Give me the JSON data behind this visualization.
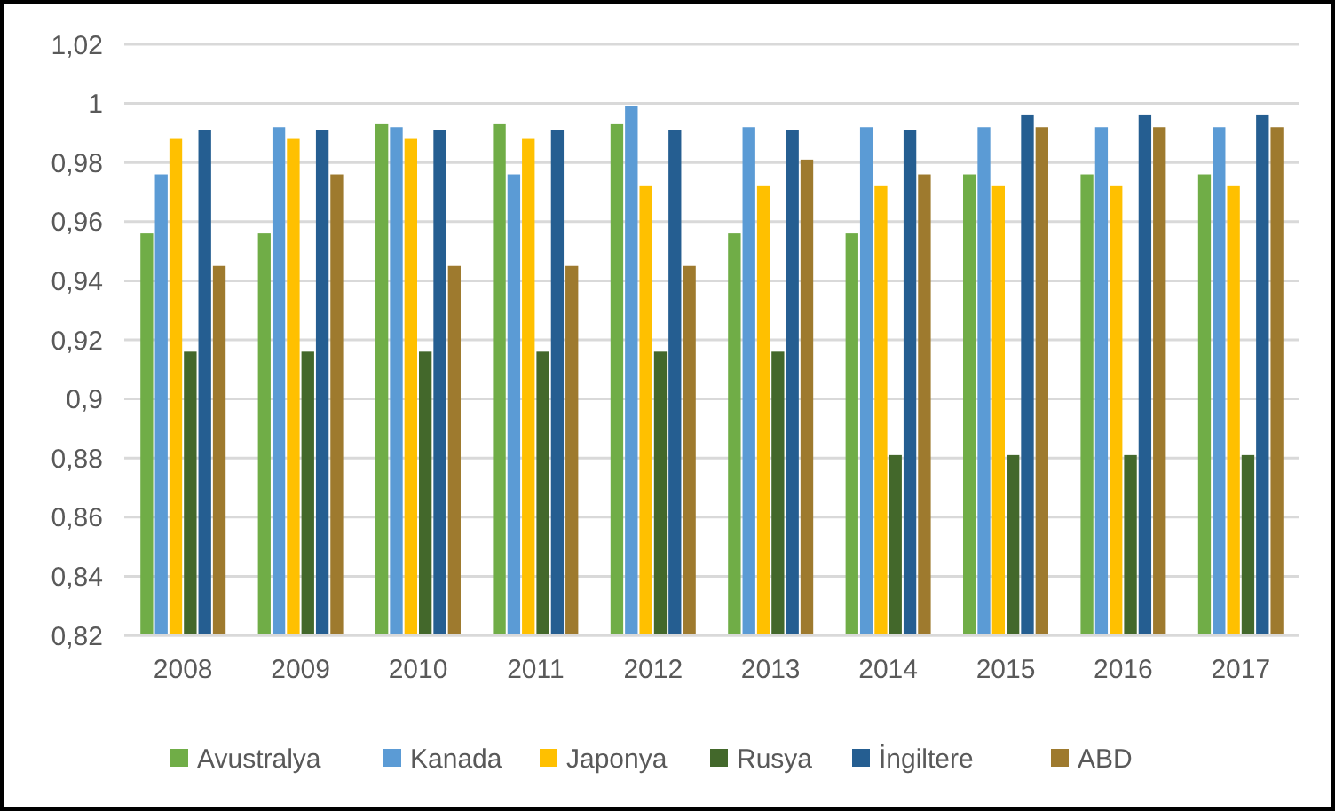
{
  "chart_data": {
    "type": "bar",
    "categories": [
      "2008",
      "2009",
      "2010",
      "2011",
      "2012",
      "2013",
      "2014",
      "2015",
      "2016",
      "2017"
    ],
    "series": [
      {
        "name": "Avustralya",
        "color": "#70ad47",
        "values": [
          0.956,
          0.956,
          0.993,
          0.993,
          0.993,
          0.956,
          0.956,
          0.976,
          0.976,
          0.976
        ]
      },
      {
        "name": "Kanada",
        "color": "#5b9bd5",
        "values": [
          0.976,
          0.992,
          0.992,
          0.976,
          0.999,
          0.992,
          0.992,
          0.992,
          0.992,
          0.992
        ]
      },
      {
        "name": "Japonya",
        "color": "#ffc000",
        "values": [
          0.988,
          0.988,
          0.988,
          0.988,
          0.972,
          0.972,
          0.972,
          0.972,
          0.972,
          0.972
        ]
      },
      {
        "name": "Rusya",
        "color": "#43682b",
        "values": [
          0.916,
          0.916,
          0.916,
          0.916,
          0.916,
          0.916,
          0.881,
          0.881,
          0.881,
          0.881
        ]
      },
      {
        "name": "İngiltere",
        "color": "#255e91",
        "values": [
          0.991,
          0.991,
          0.991,
          0.991,
          0.991,
          0.991,
          0.991,
          0.996,
          0.996,
          0.996
        ]
      },
      {
        "name": "ABD",
        "color": "#9e7a2e",
        "values": [
          0.945,
          0.976,
          0.945,
          0.945,
          0.945,
          0.981,
          0.976,
          0.992,
          0.992,
          0.992
        ]
      }
    ],
    "ylim": [
      0.82,
      1.02
    ],
    "yticks": [
      {
        "value": 0.82,
        "label": "0,82"
      },
      {
        "value": 0.84,
        "label": "0,84"
      },
      {
        "value": 0.86,
        "label": "0,86"
      },
      {
        "value": 0.88,
        "label": "0,88"
      },
      {
        "value": 0.9,
        "label": "0,9"
      },
      {
        "value": 0.92,
        "label": "0,92"
      },
      {
        "value": 0.94,
        "label": "0,94"
      },
      {
        "value": 0.96,
        "label": "0,96"
      },
      {
        "value": 0.98,
        "label": "0,98"
      },
      {
        "value": 1,
        "label": "1"
      },
      {
        "value": 1.02,
        "label": "1,02"
      }
    ],
    "grid": "y",
    "legend": "bottom"
  }
}
